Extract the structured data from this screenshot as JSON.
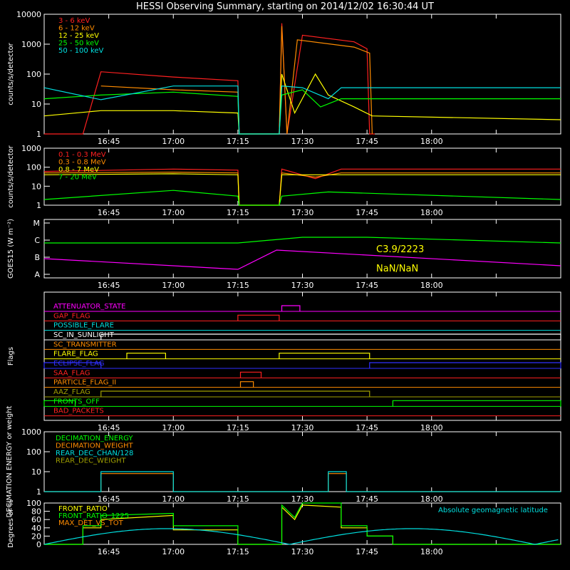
{
  "title": "HESSI Observing Summary, starting on 2014/12/02 16:30:44 UT",
  "time_ticks": [
    "16:45",
    "17:00",
    "17:15",
    "17:30",
    "17:45",
    "18:00"
  ],
  "colors": {
    "red": "#ff2020",
    "orange": "#ff8c00",
    "yellow": "#ffff00",
    "green": "#00ff00",
    "cyan": "#00e0e0",
    "magenta": "#ff00ff",
    "blue": "#3030ff",
    "olive": "#a0a000",
    "white": "#ffffff"
  },
  "chart_data": [
    {
      "type": "line",
      "ylabel": "counts/s/detector",
      "yscale": "log",
      "ylim": [
        1,
        10000
      ],
      "y_ticks": [
        "10000",
        "1000",
        "100",
        "10",
        "1"
      ],
      "series": [
        {
          "name": "3 - 6 keV",
          "color": "red",
          "points": [
            [
              16.5,
              1
            ],
            [
              16.65,
              1
            ],
            [
              16.72,
              120
            ],
            [
              17.0,
              80
            ],
            [
              17.25,
              60
            ],
            [
              17.255,
              1
            ],
            [
              17.41,
              1
            ],
            [
              17.42,
              5000
            ],
            [
              17.44,
              1
            ],
            [
              17.5,
              2000
            ],
            [
              17.7,
              1200
            ],
            [
              17.75,
              700
            ],
            [
              17.76,
              1
            ],
            [
              17.78,
              1
            ]
          ]
        },
        {
          "name": "6 - 12 keV",
          "color": "orange",
          "points": [
            [
              16.72,
              40
            ],
            [
              17.0,
              30
            ],
            [
              17.25,
              25
            ],
            [
              17.255,
              1
            ],
            [
              17.41,
              1
            ],
            [
              17.42,
              4000
            ],
            [
              17.44,
              1
            ],
            [
              17.48,
              1400
            ],
            [
              17.7,
              800
            ],
            [
              17.76,
              500
            ],
            [
              17.77,
              1
            ]
          ]
        },
        {
          "name": "12 - 25 keV",
          "color": "yellow",
          "points": [
            [
              16.5,
              4
            ],
            [
              16.72,
              6
            ],
            [
              17.0,
              6
            ],
            [
              17.25,
              5
            ],
            [
              17.255,
              1
            ],
            [
              17.41,
              1
            ],
            [
              17.42,
              100
            ],
            [
              17.47,
              5
            ],
            [
              17.55,
              100
            ],
            [
              17.6,
              20
            ],
            [
              17.7,
              8
            ],
            [
              17.77,
              4
            ],
            [
              18.5,
              3
            ]
          ]
        },
        {
          "name": "25 - 50 keV",
          "color": "green",
          "points": [
            [
              16.5,
              15
            ],
            [
              16.72,
              20
            ],
            [
              17.0,
              25
            ],
            [
              17.25,
              18
            ],
            [
              17.255,
              1
            ],
            [
              17.41,
              1
            ],
            [
              17.42,
              20
            ],
            [
              17.5,
              30
            ],
            [
              17.57,
              8
            ],
            [
              17.65,
              15
            ],
            [
              18.5,
              15
            ]
          ]
        },
        {
          "name": "50 - 100 keV",
          "color": "cyan",
          "points": [
            [
              16.5,
              35
            ],
            [
              16.72,
              14
            ],
            [
              17.0,
              40
            ],
            [
              17.25,
              40
            ],
            [
              17.255,
              1
            ],
            [
              17.41,
              1
            ],
            [
              17.42,
              40
            ],
            [
              17.5,
              35
            ],
            [
              17.6,
              15
            ],
            [
              17.65,
              35
            ],
            [
              18.5,
              35
            ]
          ]
        }
      ]
    },
    {
      "type": "line",
      "ylabel": "counts/s/detector",
      "yscale": "log",
      "ylim": [
        1,
        1000
      ],
      "y_ticks": [
        "1000",
        "100",
        "10",
        "1"
      ],
      "series": [
        {
          "name": "0.1 - 0.3 MeV",
          "color": "red",
          "points": [
            [
              16.5,
              60
            ],
            [
              17.0,
              80
            ],
            [
              17.25,
              70
            ],
            [
              17.255,
              1
            ],
            [
              17.41,
              1
            ],
            [
              17.42,
              80
            ],
            [
              17.55,
              25
            ],
            [
              17.65,
              80
            ],
            [
              18.5,
              80
            ]
          ]
        },
        {
          "name": "0.3 - 0.8 MeV",
          "color": "orange",
          "points": [
            [
              16.5,
              50
            ],
            [
              17.0,
              55
            ],
            [
              17.25,
              50
            ],
            [
              17.255,
              1
            ],
            [
              17.41,
              1
            ],
            [
              17.42,
              50
            ],
            [
              17.55,
              30
            ],
            [
              17.65,
              50
            ],
            [
              18.5,
              50
            ]
          ]
        },
        {
          "name": "0.8 - 7 MeV",
          "color": "yellow",
          "points": [
            [
              16.5,
              40
            ],
            [
              17.0,
              45
            ],
            [
              17.25,
              40
            ],
            [
              17.255,
              1
            ],
            [
              17.41,
              1
            ],
            [
              17.42,
              40
            ],
            [
              18.5,
              40
            ]
          ]
        },
        {
          "name": "7 - 20 MeV",
          "color": "green",
          "points": [
            [
              16.5,
              2
            ],
            [
              17.0,
              6
            ],
            [
              17.25,
              3
            ],
            [
              17.255,
              1
            ],
            [
              17.41,
              1
            ],
            [
              17.42,
              3
            ],
            [
              17.6,
              5
            ],
            [
              18.5,
              2
            ]
          ]
        }
      ]
    },
    {
      "type": "line",
      "ylabel": "GOES15 (W m⁻²)",
      "y_ticks": [
        "M",
        "C",
        "B",
        "A"
      ],
      "annotations": [
        "C3.9/2223",
        "NaN/NaN"
      ],
      "series": [
        {
          "name": "long",
          "color": "green",
          "points": [
            [
              16.5,
              "C"
            ],
            [
              17.25,
              "C"
            ],
            [
              17.5,
              "C"
            ],
            [
              17.75,
              "C"
            ],
            [
              18.5,
              "C"
            ]
          ]
        },
        {
          "name": "short",
          "color": "magenta",
          "points": [
            [
              16.5,
              "B"
            ],
            [
              17.25,
              "A"
            ],
            [
              17.4,
              "B"
            ],
            [
              17.75,
              "B"
            ],
            [
              18.5,
              "A"
            ]
          ]
        }
      ]
    },
    {
      "type": "line",
      "ylabel": "Flags",
      "series": [
        {
          "name": "ATTENUATOR_STATE",
          "color": "magenta",
          "intervals": [
            [
              17.42,
              17.49
            ]
          ]
        },
        {
          "name": "GAP_FLAG",
          "color": "red",
          "intervals": [
            [
              17.25,
              17.41
            ]
          ]
        },
        {
          "name": "POSSIBLE_FLARE",
          "color": "cyan",
          "intervals": []
        },
        {
          "name": "SC_IN_SUNLIGHT",
          "color": "white",
          "intervals": [
            [
              16.72,
              18.5
            ]
          ]
        },
        {
          "name": "SC_TRANSMITTER",
          "color": "orange",
          "intervals": []
        },
        {
          "name": "FLARE_FLAG",
          "color": "yellow",
          "intervals": [
            [
              16.82,
              16.97
            ],
            [
              17.41,
              17.76
            ]
          ]
        },
        {
          "name": "ECLIPSE_FLAG",
          "color": "blue",
          "intervals": [
            [
              16.5,
              16.72
            ],
            [
              17.76,
              18.5
            ]
          ]
        },
        {
          "name": "SAA_FLAG",
          "color": "red",
          "intervals": [
            [
              17.26,
              17.34
            ]
          ]
        },
        {
          "name": "PARTICLE_FLAG_II",
          "color": "orange",
          "intervals": [
            [
              17.26,
              17.31
            ]
          ]
        },
        {
          "name": "AAZ_FLAG",
          "color": "olive",
          "intervals": [
            [
              16.72,
              17.76
            ]
          ]
        },
        {
          "name": "FRONTS_OFF",
          "color": "green",
          "intervals": [
            [
              16.5,
              16.62
            ],
            [
              17.85,
              18.5
            ]
          ]
        },
        {
          "name": "BAD_PACKETS",
          "color": "red",
          "intervals": []
        }
      ]
    },
    {
      "type": "line",
      "ylabel": "DECIMATION ENERGY or weight",
      "yscale": "log",
      "ylim": [
        1,
        1000
      ],
      "y_ticks": [
        "1000",
        "100",
        "10",
        "1"
      ],
      "series": [
        {
          "name": "DECIMATION_ENERGY",
          "color": "green",
          "points": []
        },
        {
          "name": "DECIMATION_WEIGHT",
          "color": "orange",
          "points": [
            [
              16.5,
              1
            ],
            [
              16.72,
              1
            ],
            [
              16.72,
              8
            ],
            [
              17.0,
              8
            ],
            [
              17.0,
              1
            ],
            [
              17.6,
              1
            ],
            [
              17.6,
              8
            ],
            [
              17.67,
              8
            ],
            [
              17.67,
              1
            ],
            [
              18.5,
              1
            ]
          ]
        },
        {
          "name": "REAR_DEC_CHAN/128",
          "color": "cyan",
          "points": [
            [
              16.5,
              1
            ],
            [
              16.72,
              1
            ],
            [
              16.72,
              10
            ],
            [
              17.0,
              10
            ],
            [
              17.0,
              1
            ],
            [
              17.6,
              1
            ],
            [
              17.6,
              10
            ],
            [
              17.67,
              10
            ],
            [
              17.67,
              1
            ],
            [
              18.5,
              1
            ]
          ]
        },
        {
          "name": "REAR_DEC_WEIGHT",
          "color": "olive",
          "points": []
        }
      ]
    },
    {
      "type": "line",
      "ylabel": "Degrees or %",
      "ylim": [
        0,
        100
      ],
      "y_ticks": [
        "100",
        "80",
        "60",
        "40",
        "20",
        "0"
      ],
      "annotations": [
        "Absolute geomagnetic latitude"
      ],
      "series": [
        {
          "name": "FRONT_RATIO",
          "color": "yellow",
          "points": [
            [
              16.5,
              0
            ],
            [
              16.65,
              0
            ],
            [
              16.65,
              40
            ],
            [
              16.72,
              40
            ],
            [
              16.72,
              60
            ],
            [
              17.0,
              70
            ],
            [
              17.0,
              35
            ],
            [
              17.25,
              35
            ],
            [
              17.25,
              0
            ],
            [
              17.42,
              0
            ],
            [
              17.42,
              90
            ],
            [
              17.47,
              60
            ],
            [
              17.5,
              95
            ],
            [
              17.65,
              90
            ],
            [
              17.65,
              40
            ],
            [
              17.75,
              40
            ],
            [
              17.75,
              20
            ],
            [
              17.85,
              20
            ],
            [
              17.85,
              0
            ],
            [
              18.5,
              0
            ]
          ]
        },
        {
          "name": "FRONT_RATIO_1225",
          "color": "green",
          "points": [
            [
              16.5,
              0
            ],
            [
              16.65,
              0
            ],
            [
              16.65,
              45
            ],
            [
              16.72,
              45
            ],
            [
              16.72,
              70
            ],
            [
              17.0,
              75
            ],
            [
              17.0,
              45
            ],
            [
              17.25,
              45
            ],
            [
              17.25,
              0
            ],
            [
              17.42,
              0
            ],
            [
              17.42,
              95
            ],
            [
              17.47,
              65
            ],
            [
              17.5,
              100
            ],
            [
              17.65,
              100
            ],
            [
              17.65,
              45
            ],
            [
              17.75,
              45
            ],
            [
              17.75,
              20
            ],
            [
              17.85,
              20
            ],
            [
              17.85,
              0
            ],
            [
              18.5,
              0
            ]
          ]
        },
        {
          "name": "MAX_DET_VS_TOT",
          "color": "orange",
          "points": []
        },
        {
          "name": "Absolute geomagnetic latitude",
          "color": "cyan",
          "points": [
            [
              16.5,
              0
            ],
            [
              16.97,
              38
            ],
            [
              17.45,
              0
            ],
            [
              17.9,
              38
            ],
            [
              18.35,
              0
            ],
            [
              18.5,
              10
            ]
          ]
        }
      ]
    }
  ]
}
